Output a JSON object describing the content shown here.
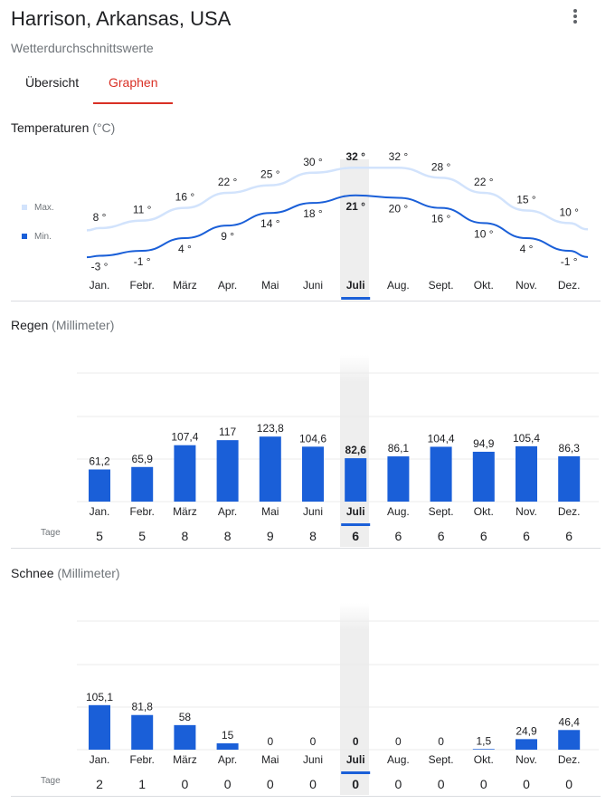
{
  "header": {
    "title": "Harrison, Arkansas, USA",
    "subtitle": "Wetterdurchschnittswerte"
  },
  "tabs": [
    {
      "label": "Übersicht",
      "active": false
    },
    {
      "label": "Graphen",
      "active": true
    }
  ],
  "colors": {
    "max": "#d2e3fc",
    "min": "#1a5fd8",
    "bar": "#1a5fd8",
    "selected": "#eeeeee",
    "active_tab": "#d93025"
  },
  "months": [
    "Jan.",
    "Febr.",
    "März",
    "Apr.",
    "Mai",
    "Juni",
    "Juli",
    "Aug.",
    "Sept.",
    "Okt.",
    "Nov.",
    "Dez."
  ],
  "selected_month_index": 6,
  "temperature": {
    "title": "Temperaturen",
    "unit": "(°C)",
    "legend_max": "Max.",
    "legend_min": "Min."
  },
  "rain": {
    "title": "Regen",
    "unit": "(Millimeter)",
    "days_label": "Tage"
  },
  "snow": {
    "title": "Schnee",
    "unit": "(Millimeter)",
    "days_label": "Tage"
  },
  "chart_data": [
    {
      "type": "line",
      "title": "Temperaturen",
      "categories": [
        "Jan.",
        "Febr.",
        "März",
        "Apr.",
        "Mai",
        "Juni",
        "Juli",
        "Aug.",
        "Sept.",
        "Okt.",
        "Nov.",
        "Dez."
      ],
      "series": [
        {
          "name": "Max.",
          "values": [
            8,
            11,
            16,
            22,
            25,
            30,
            32,
            32,
            28,
            22,
            15,
            10
          ],
          "labels": [
            "8 °",
            "11 °",
            "16 °",
            "22 °",
            "25 °",
            "30 °",
            "32 °",
            "32 °",
            "28 °",
            "22 °",
            "15 °",
            "10 °"
          ]
        },
        {
          "name": "Min.",
          "values": [
            -3,
            -1,
            4,
            9,
            14,
            18,
            21,
            20,
            16,
            10,
            4,
            -1
          ],
          "labels": [
            "-3 °",
            "-1 °",
            "4 °",
            "9 °",
            "14 °",
            "18 °",
            "21 °",
            "20 °",
            "16 °",
            "10 °",
            "4 °",
            "-1 °"
          ]
        }
      ]
    },
    {
      "type": "bar",
      "title": "Regen",
      "categories": [
        "Jan.",
        "Febr.",
        "März",
        "Apr.",
        "Mai",
        "Juni",
        "Juli",
        "Aug.",
        "Sept.",
        "Okt.",
        "Nov.",
        "Dez."
      ],
      "values": [
        61.2,
        65.9,
        107.4,
        117,
        123.8,
        104.6,
        82.6,
        86.1,
        104.4,
        94.9,
        105.4,
        86.3
      ],
      "labels": [
        "61,2",
        "65,9",
        "107,4",
        "117",
        "123,8",
        "104,6",
        "82,6",
        "86,1",
        "104,4",
        "94,9",
        "105,4",
        "86,3"
      ],
      "days": [
        "5",
        "5",
        "8",
        "8",
        "9",
        "8",
        "6",
        "6",
        "6",
        "6",
        "6",
        "6"
      ]
    },
    {
      "type": "bar",
      "title": "Schnee",
      "categories": [
        "Jan.",
        "Febr.",
        "März",
        "Apr.",
        "Mai",
        "Juni",
        "Juli",
        "Aug.",
        "Sept.",
        "Okt.",
        "Nov.",
        "Dez."
      ],
      "values": [
        105.1,
        81.8,
        58,
        15,
        0,
        0,
        0,
        0,
        0,
        1.5,
        24.9,
        46.4
      ],
      "labels": [
        "105,1",
        "81,8",
        "58",
        "15",
        "0",
        "0",
        "0",
        "0",
        "0",
        "1,5",
        "24,9",
        "46,4"
      ],
      "days": [
        "2",
        "1",
        "0",
        "0",
        "0",
        "0",
        "0",
        "0",
        "0",
        "0",
        "0",
        "0"
      ]
    }
  ]
}
